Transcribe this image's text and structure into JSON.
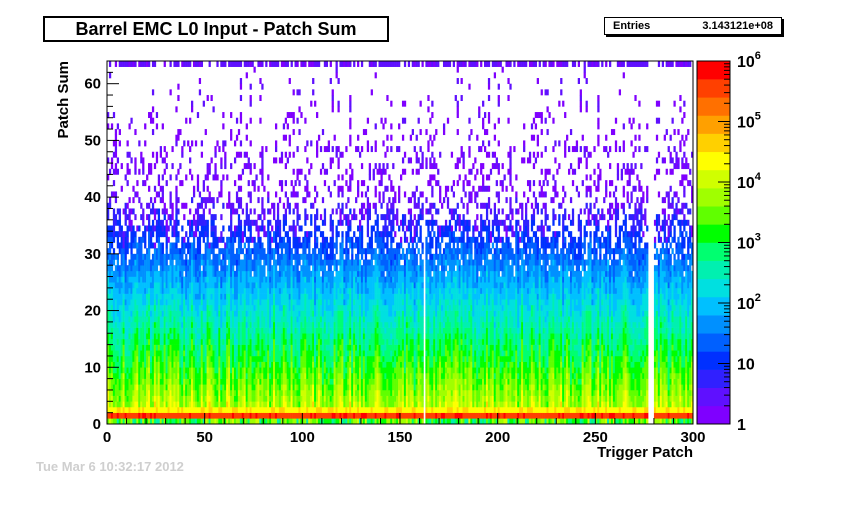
{
  "chart_data": {
    "type": "heatmap",
    "title": "Barrel EMC L0 Input - Patch Sum",
    "xlabel": "Trigger Patch",
    "ylabel": "Patch Sum",
    "xlim": [
      0,
      300
    ],
    "ylim": [
      0,
      64
    ],
    "x_ticks": [
      "0",
      "50",
      "100",
      "150",
      "200",
      "250",
      "300"
    ],
    "y_ticks": [
      "0",
      "10",
      "20",
      "30",
      "40",
      "50",
      "60"
    ],
    "z_scale": "log",
    "zlim": [
      1,
      1000000
    ],
    "z_ticks": [
      {
        "value": 1,
        "label": "1"
      },
      {
        "value": 10,
        "label": "10"
      },
      {
        "value": 100,
        "label": "10",
        "exp": "2"
      },
      {
        "value": 1000,
        "label": "10",
        "exp": "3"
      },
      {
        "value": 10000,
        "label": "10",
        "exp": "4"
      },
      {
        "value": 100000,
        "label": "10",
        "exp": "5"
      },
      {
        "value": 1000000,
        "label": "10",
        "exp": "6"
      }
    ],
    "stats": {
      "label": "Entries",
      "value": "3.143121e+08"
    },
    "empty_columns": [
      162,
      277,
      278,
      279
    ]
  },
  "footer": {
    "date_text": "Tue Mar  6 10:32:17 2012"
  },
  "colors": {
    "palette": [
      "#7f00ff",
      "#5f10ff",
      "#3020ff",
      "#0030ff",
      "#0060ff",
      "#0090ff",
      "#00c0ff",
      "#00e0e0",
      "#00f0b0",
      "#00ff70",
      "#00ff00",
      "#60ff00",
      "#a0ff00",
      "#d0ff00",
      "#ffff00",
      "#ffd000",
      "#ffa000",
      "#ff7000",
      "#ff4000",
      "#ff0000"
    ]
  }
}
